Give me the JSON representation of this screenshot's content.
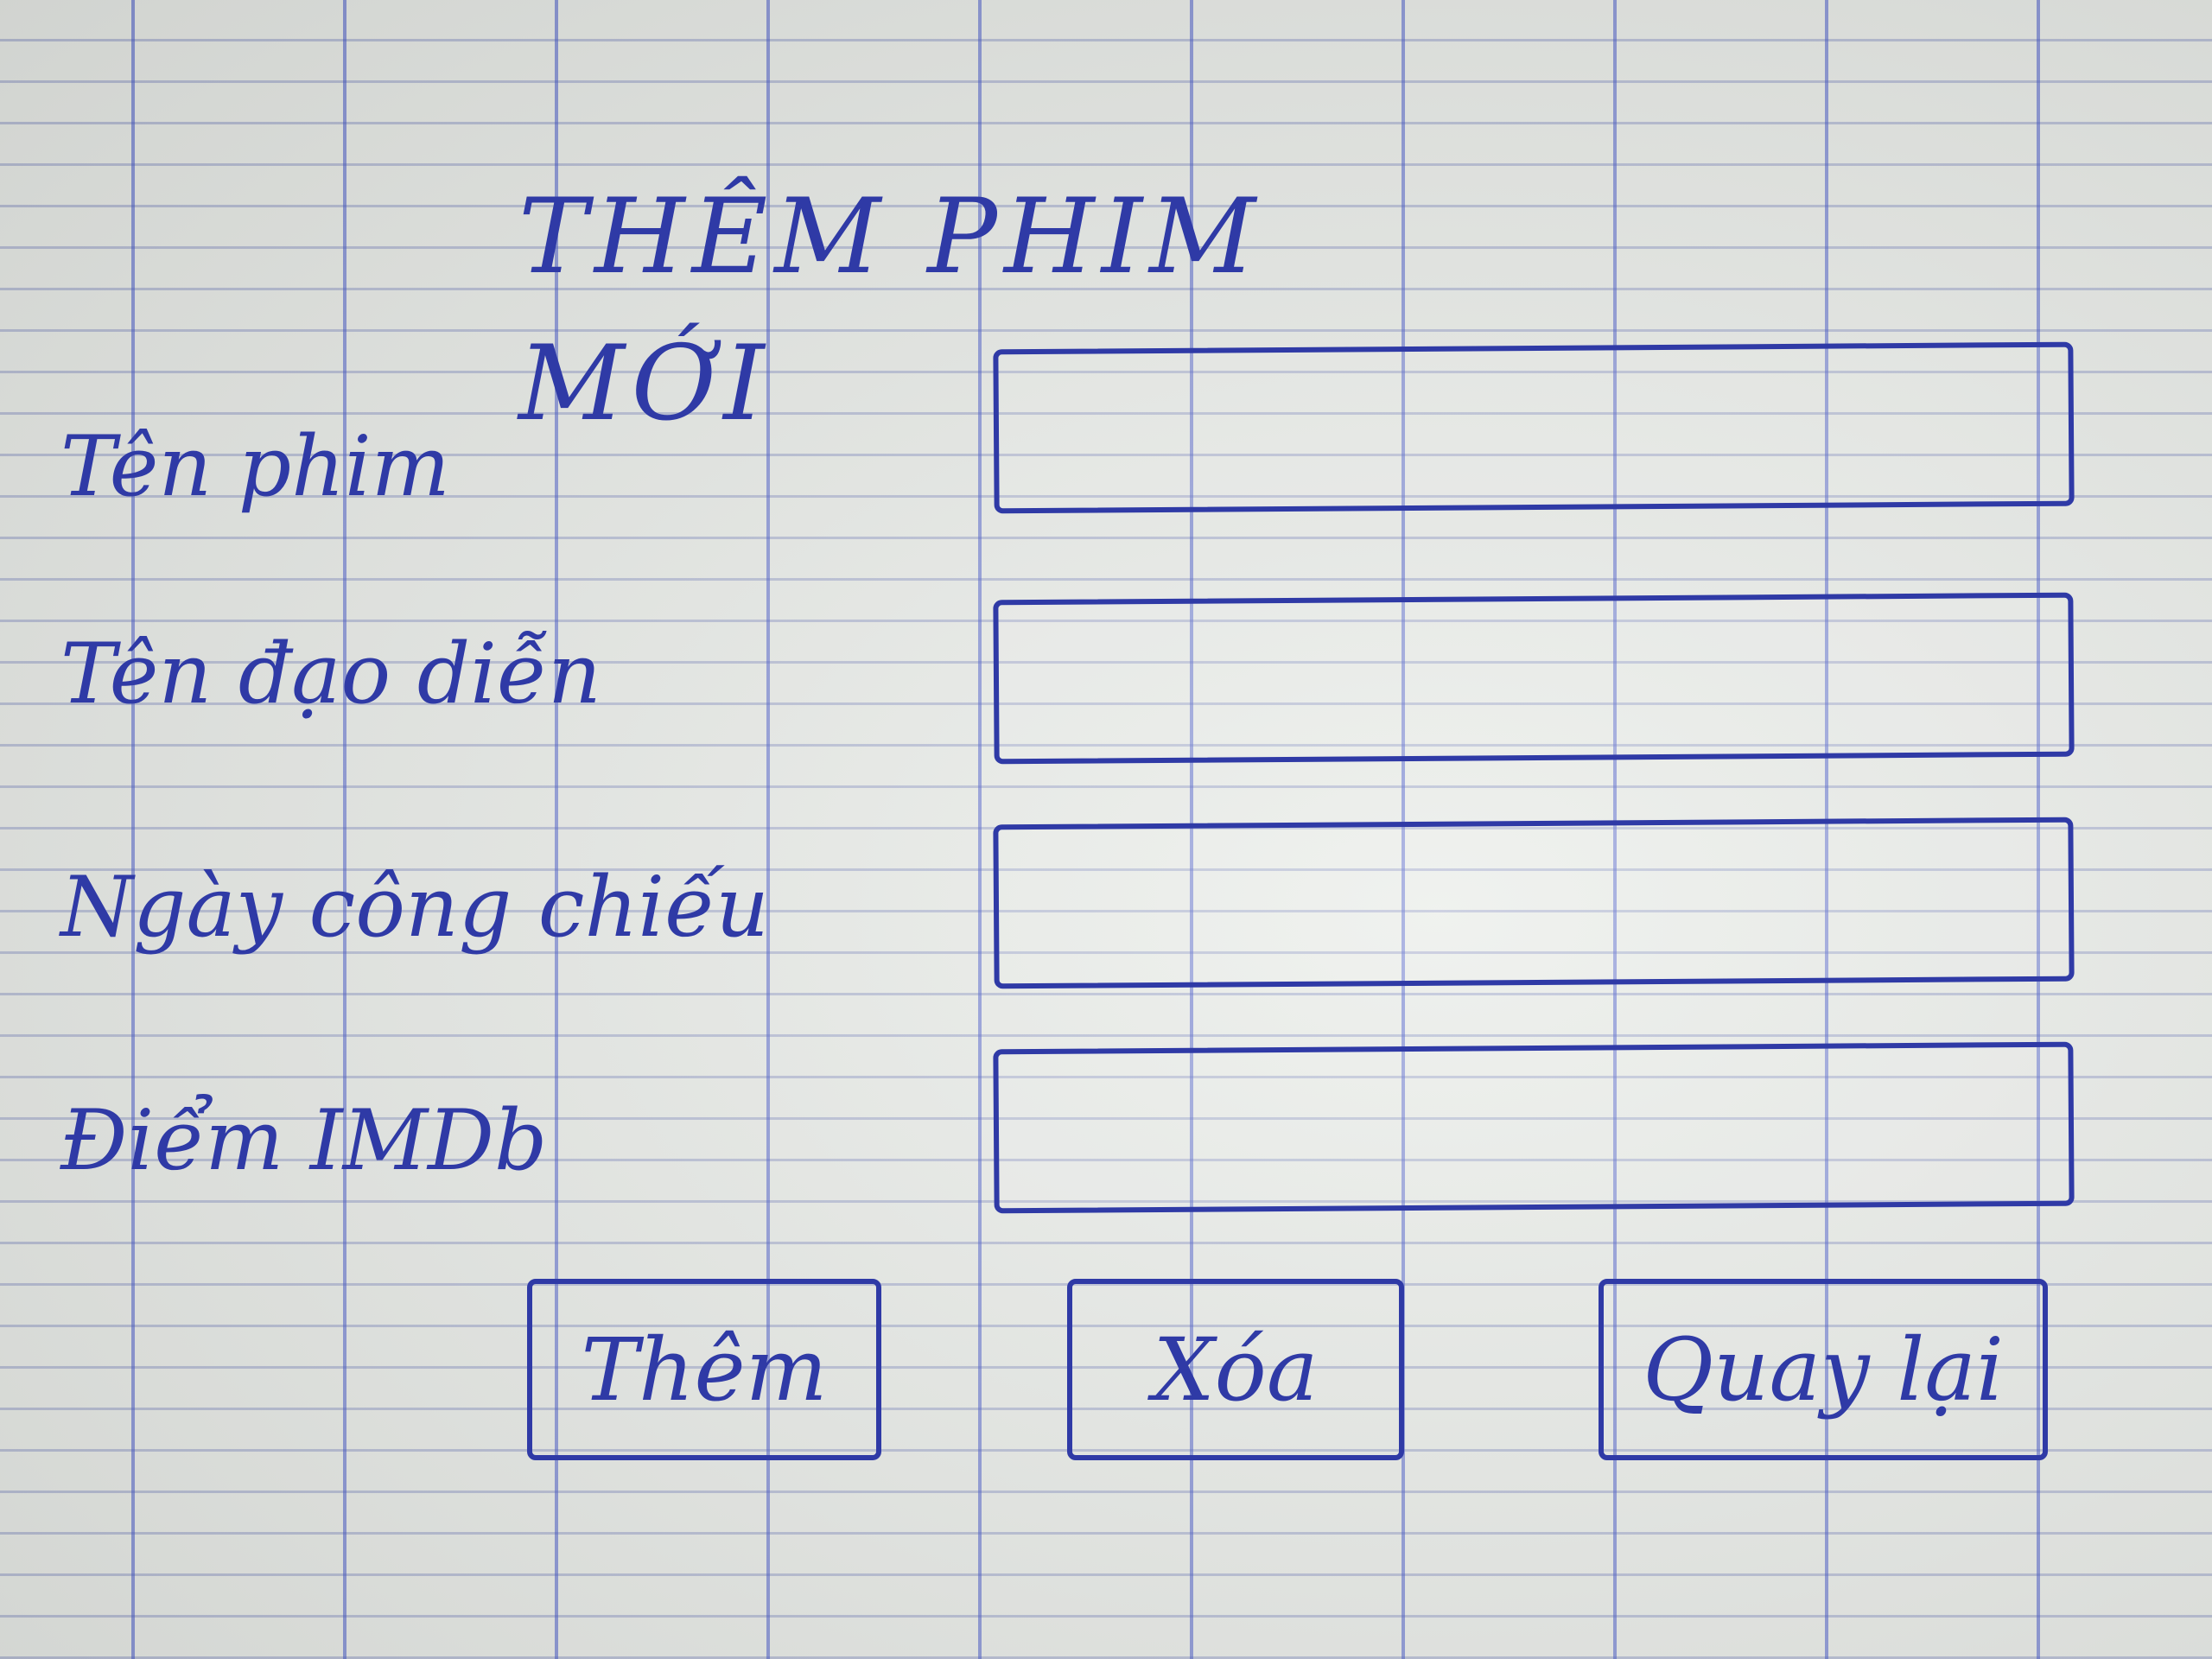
{
  "form": {
    "title": "THÊM PHIM MỚI",
    "fields": [
      {
        "label": "Tên phim",
        "value": ""
      },
      {
        "label": "Tên đạo diễn",
        "value": ""
      },
      {
        "label": "Ngày công chiếu",
        "value": ""
      },
      {
        "label": "Điểm IMDb",
        "value": ""
      }
    ],
    "buttons": {
      "add": "Thêm",
      "delete": "Xóa",
      "back": "Quay lại"
    }
  },
  "colors": {
    "ink": "#2f3aa6",
    "paper": "#e9ece8"
  }
}
